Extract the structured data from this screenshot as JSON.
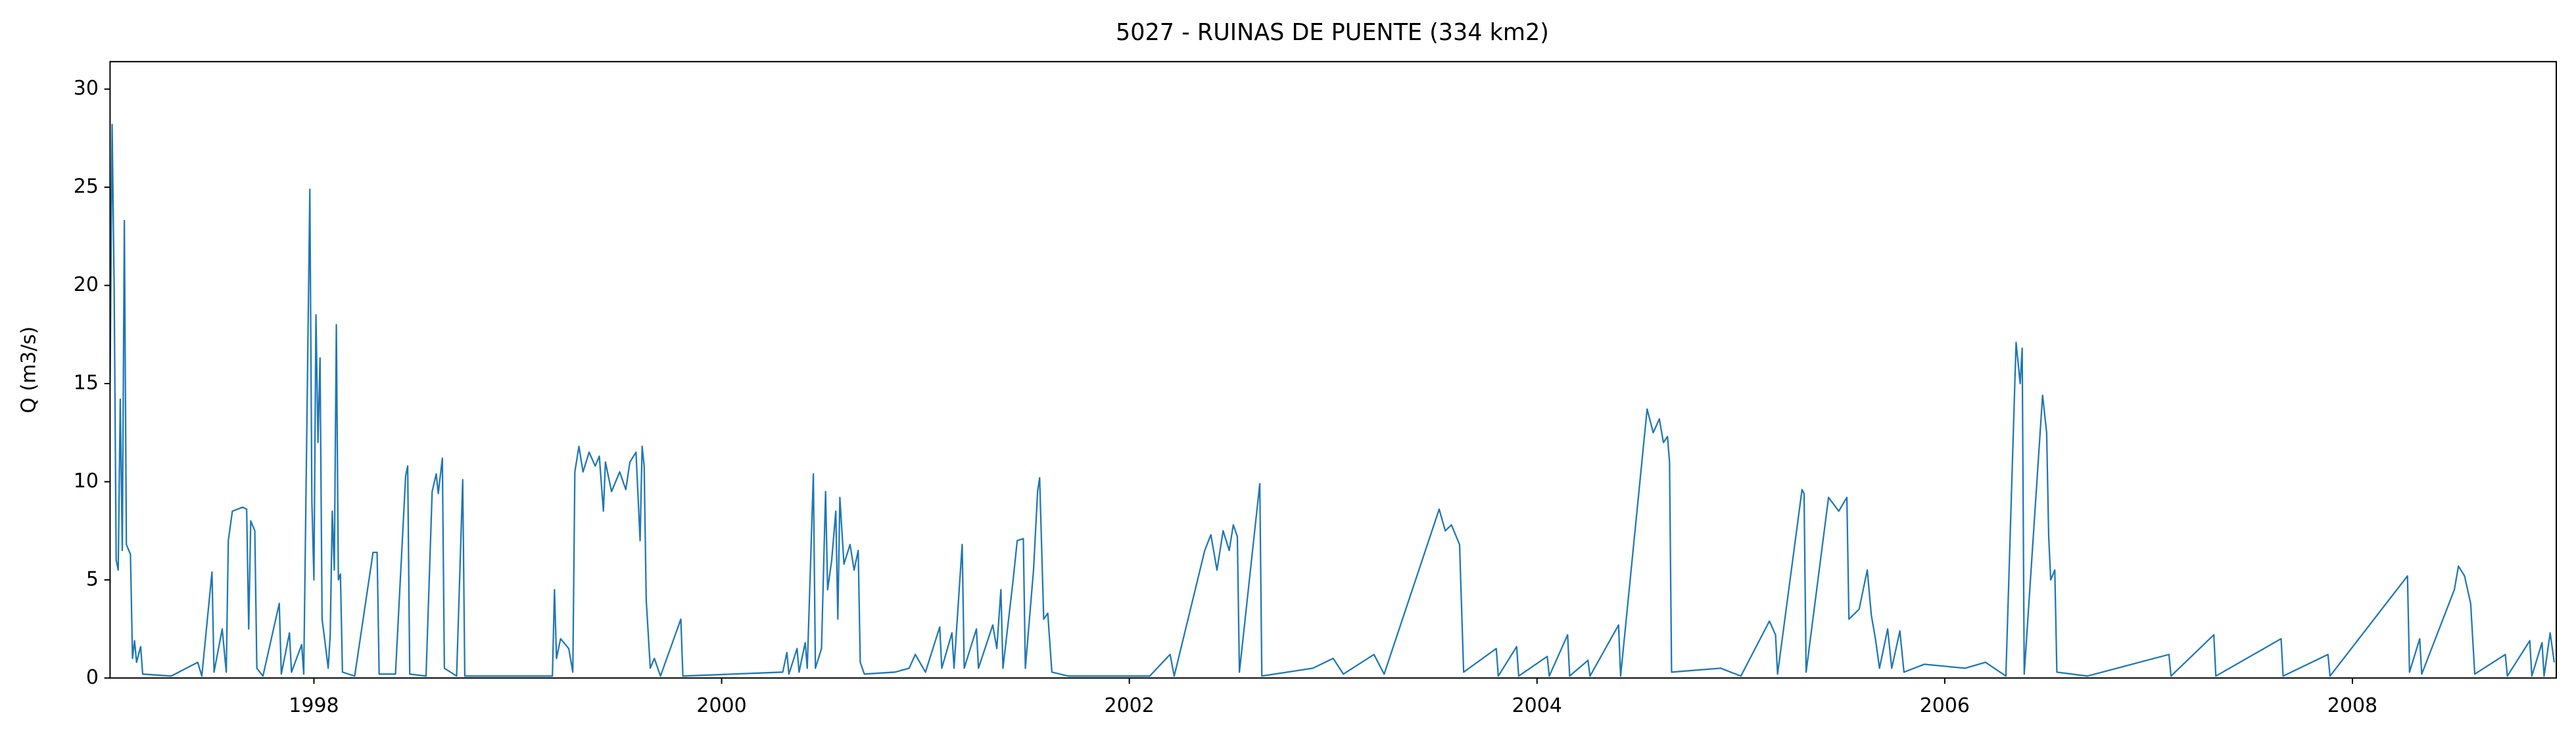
{
  "chart_data": {
    "type": "line",
    "title": "5027 - RUINAS DE PUENTE (334 km2)",
    "y_label": "Q (m3/s)",
    "color": "#1f77b4",
    "grid": false,
    "xlim": [
      1997.0,
      2009.0
    ],
    "ylim": [
      0,
      31.4
    ],
    "xticks": [
      1998,
      2000,
      2002,
      2004,
      2006,
      2008
    ],
    "yticks": [
      0,
      5,
      10,
      15,
      20,
      25,
      30
    ],
    "x": [
      1997.0,
      1997.01,
      1997.02,
      1997.03,
      1997.04,
      1997.05,
      1997.06,
      1997.07,
      1997.08,
      1997.1,
      1997.11,
      1997.12,
      1997.13,
      1997.15,
      1997.16,
      1997.3,
      1997.43,
      1997.45,
      1997.5,
      1997.51,
      1997.55,
      1997.57,
      1997.58,
      1997.6,
      1997.65,
      1997.67,
      1997.68,
      1997.69,
      1997.71,
      1997.72,
      1997.75,
      1997.83,
      1997.84,
      1997.88,
      1997.89,
      1997.94,
      1997.95,
      1997.98,
      1997.99,
      1998.0,
      1998.01,
      1998.02,
      1998.03,
      1998.04,
      1998.05,
      1998.07,
      1998.08,
      1998.09,
      1998.1,
      1998.11,
      1998.12,
      1998.13,
      1998.14,
      1998.2,
      1998.29,
      1998.31,
      1998.32,
      1998.4,
      1998.45,
      1998.46,
      1998.47,
      1998.55,
      1998.58,
      1998.6,
      1998.61,
      1998.63,
      1998.64,
      1998.7,
      1998.73,
      1998.74,
      1999.17,
      1999.18,
      1999.19,
      1999.21,
      1999.25,
      1999.27,
      1999.28,
      1999.3,
      1999.32,
      1999.35,
      1999.38,
      1999.4,
      1999.42,
      1999.43,
      1999.46,
      1999.5,
      1999.53,
      1999.55,
      1999.58,
      1999.6,
      1999.61,
      1999.62,
      1999.63,
      1999.65,
      1999.67,
      1999.7,
      1999.8,
      1999.81,
      2000.3,
      2000.32,
      2000.33,
      2000.37,
      2000.38,
      2000.41,
      2000.42,
      2000.45,
      2000.46,
      2000.49,
      2000.51,
      2000.52,
      2000.54,
      2000.56,
      2000.57,
      2000.58,
      2000.6,
      2000.63,
      2000.65,
      2000.67,
      2000.68,
      2000.7,
      2000.85,
      2000.92,
      2000.95,
      2001.0,
      2001.07,
      2001.08,
      2001.13,
      2001.14,
      2001.18,
      2001.19,
      2001.25,
      2001.26,
      2001.33,
      2001.35,
      2001.37,
      2001.38,
      2001.43,
      2001.45,
      2001.48,
      2001.49,
      2001.53,
      2001.55,
      2001.56,
      2001.58,
      2001.6,
      2001.62,
      2001.7,
      2002.1,
      2002.2,
      2002.22,
      2002.37,
      2002.4,
      2002.43,
      2002.46,
      2002.49,
      2002.51,
      2002.53,
      2002.54,
      2002.64,
      2002.65,
      2002.9,
      2003.0,
      2003.05,
      2003.2,
      2003.25,
      2003.52,
      2003.55,
      2003.58,
      2003.62,
      2003.64,
      2003.8,
      2003.81,
      2003.9,
      2003.91,
      2004.05,
      2004.06,
      2004.15,
      2004.16,
      2004.25,
      2004.26,
      2004.4,
      2004.41,
      2004.54,
      2004.57,
      2004.6,
      2004.62,
      2004.64,
      2004.65,
      2004.66,
      2004.9,
      2005.0,
      2005.14,
      2005.17,
      2005.18,
      2005.3,
      2005.31,
      2005.32,
      2005.43,
      2005.48,
      2005.52,
      2005.53,
      2005.58,
      2005.62,
      2005.64,
      2005.66,
      2005.68,
      2005.72,
      2005.74,
      2005.78,
      2005.8,
      2005.9,
      2006.1,
      2006.2,
      2006.3,
      2006.35,
      2006.37,
      2006.38,
      2006.39,
      2006.48,
      2006.5,
      2006.51,
      2006.52,
      2006.54,
      2006.55,
      2006.7,
      2007.1,
      2007.11,
      2007.32,
      2007.33,
      2007.65,
      2007.66,
      2007.88,
      2007.89,
      2008.27,
      2008.28,
      2008.33,
      2008.34,
      2008.5,
      2008.52,
      2008.55,
      2008.58,
      2008.6,
      2008.75,
      2008.76,
      2008.87,
      2008.88,
      2008.93,
      2008.94,
      2008.97,
      2008.99
    ],
    "values": [
      15,
      28.2,
      20,
      6,
      5.5,
      14.2,
      6.5,
      23.3,
      6.8,
      6.3,
      1,
      1.9,
      0.8,
      1.6,
      0.2,
      0.1,
      0.8,
      0.1,
      5.4,
      0.3,
      2.5,
      0.3,
      7,
      8.5,
      8.7,
      8.6,
      2.5,
      8,
      7.5,
      0.5,
      0.1,
      3.8,
      0.2,
      2.3,
      0.3,
      1.7,
      0.2,
      24.9,
      9,
      5,
      18.5,
      12,
      16.3,
      3,
      2.2,
      0.5,
      2.2,
      8.5,
      5.5,
      18,
      5,
      5.3,
      0.3,
      0.1,
      6.4,
      6.4,
      0.2,
      0.2,
      10.3,
      10.8,
      0.2,
      0.1,
      9.5,
      10.4,
      9.4,
      11.2,
      0.5,
      0.1,
      10.1,
      0.1,
      0.1,
      4.5,
      1,
      2,
      1.5,
      0.3,
      10.5,
      11.8,
      10.5,
      11.5,
      10.8,
      11.3,
      8.5,
      11,
      9.5,
      10.5,
      9.6,
      11,
      11.5,
      7,
      11.8,
      10.8,
      4,
      0.5,
      1,
      0.1,
      3,
      0.1,
      0.3,
      1.3,
      0.2,
      1.5,
      0.3,
      1.8,
      0.5,
      10.4,
      0.5,
      1.5,
      9.5,
      4.5,
      6,
      8.5,
      3,
      9.2,
      5.8,
      6.8,
      5.5,
      6.5,
      0.8,
      0.2,
      0.3,
      0.5,
      1.2,
      0.3,
      2.6,
      0.5,
      2.3,
      0.5,
      6.8,
      0.5,
      2.5,
      0.5,
      2.7,
      1.5,
      4.5,
      0.5,
      5,
      7,
      7.1,
      0.5,
      5.5,
      9.5,
      10.2,
      3,
      3.3,
      0.3,
      0.1,
      0.1,
      1.2,
      0.1,
      6.5,
      7.3,
      5.5,
      7.5,
      6.5,
      7.8,
      7.2,
      0.3,
      9.9,
      0.1,
      0.5,
      1,
      0.2,
      1.2,
      0.2,
      8.6,
      7.5,
      7.8,
      6.8,
      0.3,
      1.5,
      0.1,
      1.6,
      0.1,
      1.1,
      0.1,
      2.2,
      0.1,
      0.9,
      0.1,
      2.7,
      0.1,
      13.7,
      12.5,
      13.2,
      12,
      12.3,
      11,
      0.3,
      0.5,
      0.1,
      2.9,
      2.2,
      0.2,
      9.6,
      9.4,
      0.3,
      9.2,
      8.5,
      9.2,
      3,
      3.5,
      5.5,
      3.2,
      2,
      0.5,
      2.5,
      0.5,
      2.4,
      0.3,
      0.7,
      0.5,
      0.8,
      0.1,
      17.1,
      15,
      16.8,
      0.2,
      14.4,
      12.5,
      7.2,
      5,
      5.5,
      0.3,
      0.1,
      1.2,
      0.1,
      2.2,
      0.1,
      2,
      0.1,
      1.2,
      0.1,
      5.2,
      0.3,
      2,
      0.2,
      4.5,
      5.7,
      5.2,
      3.8,
      0.2,
      1.2,
      0.1,
      1.9,
      0.1,
      1.8,
      0.1,
      2.3,
      0.8
    ]
  }
}
